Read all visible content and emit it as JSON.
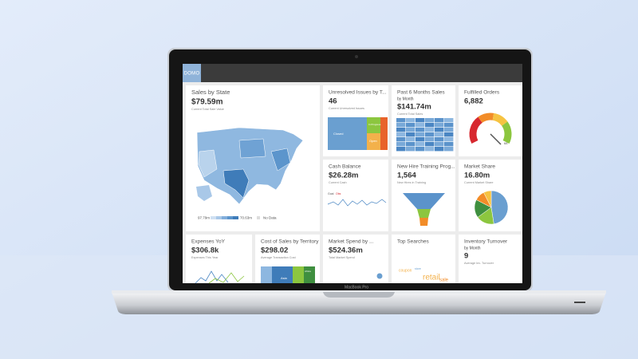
{
  "header": {
    "logo": "DOMO"
  },
  "tiles": [
    {
      "title": "Sales by State",
      "value": "$79.59m",
      "caption": "Current Total Sale Value",
      "labels": [
        "97.79m",
        "70.63m",
        "No Data"
      ]
    },
    {
      "title": "Unresolved Issues by T...",
      "value": "46",
      "caption": "Current Unresolved Issues",
      "labels": [
        "Closed",
        "In Progress",
        "Open"
      ]
    },
    {
      "title": "Past 6 Months Sales",
      "by": "by Month",
      "value": "$141.74m",
      "caption": "Current Total Sales"
    },
    {
      "title": "Fulfilled Orders",
      "value": "6,882",
      "labels": [
        "68"
      ]
    },
    {
      "title": "Cash Balance",
      "value": "$26.28m",
      "caption": "Current Cash",
      "labels": [
        "Goal",
        "Obs"
      ]
    },
    {
      "title": "New Hire Training Prog...",
      "value": "1,564",
      "caption": "New Hires in Training"
    },
    {
      "title": "Market Share",
      "value": "16.80m",
      "caption": "Current Market Share"
    },
    {
      "title": "Expenses YoY",
      "value": "$306.8k",
      "caption": "Expenses This Year"
    },
    {
      "title": "Cost of Sales by Territory",
      "value": "$298.02",
      "caption": "Average Transaction Cost",
      "labels": [
        "Asia",
        "Africa"
      ]
    },
    {
      "title": "Market Spend by ...",
      "value": "$524.36m",
      "caption": "Total Market Spend"
    },
    {
      "title": "Top Searches",
      "labels": [
        "coupon",
        "store",
        "retail",
        "sale"
      ]
    },
    {
      "title": "Inventory Turnover",
      "by": "by Month",
      "value": "9",
      "caption": "Average Inv. Turnover"
    }
  ],
  "device": {
    "label": "MacBook Pro"
  }
}
